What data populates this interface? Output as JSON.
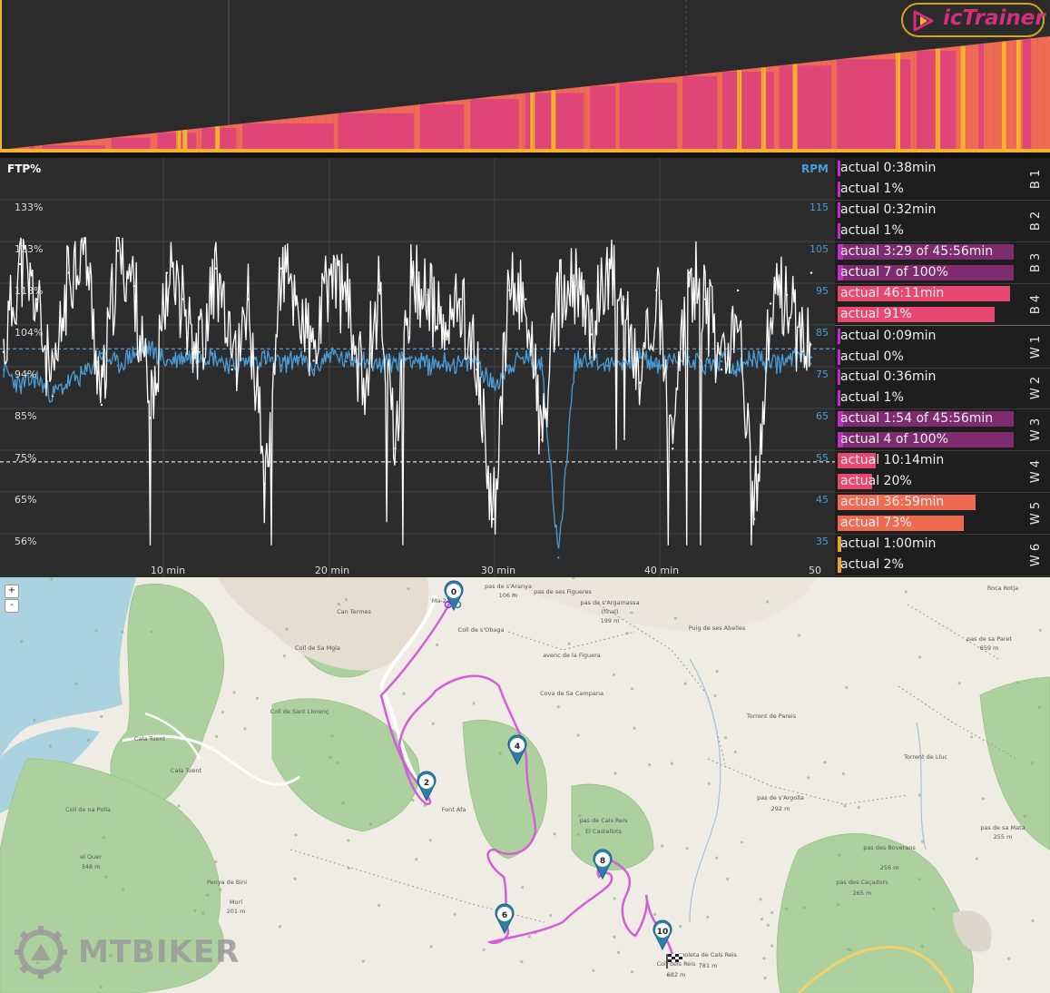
{
  "app": {
    "logo_text": "icTrainer"
  },
  "colors": {
    "accent": "#d1307a",
    "power_line": "#ffffff",
    "cadence_line": "#4a9bd6",
    "profile_base": "#ef6b55",
    "profile_pink": "#e0457a",
    "profile_yellow": "#f5b22a",
    "lap_purple": "#7e2b6f",
    "lap_pink": "#e8486f",
    "lap_orange": "#ee6b52",
    "lap_gold": "#f3a127"
  },
  "chart": {
    "ftp_label": "FTP%",
    "rpm_label": "RPM",
    "ftp_ticks": [
      "133%",
      "123%",
      "113%",
      "104%",
      "94%",
      "85%",
      "75%",
      "65%",
      "56%"
    ],
    "rpm_ticks": [
      "115",
      "105",
      "95",
      "85",
      "75",
      "65",
      "55",
      "45",
      "35"
    ],
    "time_ticks": [
      "10 min",
      "20 min",
      "30 min",
      "40 min",
      "50"
    ]
  },
  "chart_data": {
    "type": "line",
    "title": "",
    "xlabel": "",
    "ylabel": "FTP%",
    "y2label": "RPM",
    "xlim": [
      0,
      51
    ],
    "ylim": [
      53,
      141
    ],
    "y2lim": [
      31,
      121
    ],
    "ref_lines": {
      "ftp_dashed": 75,
      "rpm_dashed": 81
    },
    "series": [
      {
        "name": "",
        "axis": "ftp",
        "points": [
          [
            0,
            100
          ],
          [
            1,
            120
          ],
          [
            2,
            112
          ],
          [
            3,
            90
          ],
          [
            4,
            118
          ],
          [
            5,
            125
          ],
          [
            6,
            88
          ],
          [
            7,
            123
          ],
          [
            8,
            115
          ],
          [
            9,
            85
          ],
          [
            10,
            118
          ],
          [
            11,
            112
          ],
          [
            12,
            100
          ],
          [
            13,
            119
          ],
          [
            14,
            96
          ],
          [
            15,
            112
          ],
          [
            16,
            70
          ],
          [
            17,
            119
          ],
          [
            18,
            111
          ],
          [
            19,
            98
          ],
          [
            20,
            118
          ],
          [
            21,
            112
          ],
          [
            22,
            92
          ],
          [
            23,
            114
          ],
          [
            24,
            78
          ],
          [
            25,
            117
          ],
          [
            26,
            113
          ],
          [
            27,
            103
          ],
          [
            28,
            112
          ],
          [
            29,
            96
          ],
          [
            30,
            62
          ],
          [
            31,
            114
          ],
          [
            32,
            112
          ],
          [
            33,
            80
          ],
          [
            34,
            111
          ],
          [
            35,
            115
          ],
          [
            36,
            104
          ],
          [
            37,
            120
          ],
          [
            38,
            112
          ],
          [
            39,
            93
          ],
          [
            40,
            114
          ],
          [
            41,
            78
          ],
          [
            42,
            118
          ],
          [
            43,
            112
          ],
          [
            44,
            96
          ],
          [
            45,
            114
          ],
          [
            46,
            62
          ],
          [
            47,
            111
          ],
          [
            48,
            113
          ],
          [
            49,
            100
          ],
          [
            50,
            118
          ]
        ]
      },
      {
        "name": "",
        "axis": "rpm",
        "points": [
          [
            0,
            76
          ],
          [
            1,
            72
          ],
          [
            2,
            74
          ],
          [
            3,
            70
          ],
          [
            4,
            73
          ],
          [
            5,
            75
          ],
          [
            6,
            80
          ],
          [
            7,
            77
          ],
          [
            8,
            80
          ],
          [
            9,
            81
          ],
          [
            10,
            78
          ],
          [
            11,
            79
          ],
          [
            12,
            80
          ],
          [
            13,
            79
          ],
          [
            14,
            77
          ],
          [
            15,
            78
          ],
          [
            16,
            79
          ],
          [
            17,
            77
          ],
          [
            18,
            79
          ],
          [
            19,
            76
          ],
          [
            20,
            80
          ],
          [
            21,
            78
          ],
          [
            22,
            79
          ],
          [
            23,
            77
          ],
          [
            24,
            78
          ],
          [
            25,
            79
          ],
          [
            26,
            77
          ],
          [
            27,
            78
          ],
          [
            28,
            77
          ],
          [
            29,
            78
          ],
          [
            30,
            72
          ],
          [
            31,
            77
          ],
          [
            32,
            79
          ],
          [
            33,
            77
          ],
          [
            34,
            31
          ],
          [
            35,
            78
          ],
          [
            36,
            79
          ],
          [
            37,
            77
          ],
          [
            38,
            78
          ],
          [
            39,
            79
          ],
          [
            40,
            77
          ],
          [
            41,
            78
          ],
          [
            42,
            79
          ],
          [
            43,
            77
          ],
          [
            44,
            78
          ],
          [
            45,
            76
          ],
          [
            46,
            79
          ],
          [
            47,
            77
          ],
          [
            48,
            78
          ],
          [
            49,
            80
          ],
          [
            50,
            79
          ]
        ]
      }
    ]
  },
  "profile_data": {
    "type": "area",
    "ylim": [
      0,
      100
    ],
    "start": 0,
    "end": 100,
    "yellow_stripes": [
      16.8,
      17.4,
      20.5,
      50.5,
      52.5,
      70.2,
      72.5,
      75.5,
      85.3,
      89.1,
      91.5,
      95.4,
      96.8
    ],
    "pink_stripes": [
      2.8,
      3.3,
      4.0,
      10.0,
      10.6,
      14.3,
      15.0,
      18.7,
      19.2,
      22.5,
      23.1,
      31.8,
      32.2,
      39.4,
      40.0,
      44.2,
      44.8,
      49.4,
      50.0,
      55.6,
      56.2,
      58.6,
      59.0,
      64.5,
      65.0,
      68.3,
      68.8,
      73.7,
      74.2,
      79.2,
      79.7,
      86.7,
      87.3,
      91.0,
      93.2,
      93.7,
      97.4,
      98.2
    ]
  },
  "laps": [
    {
      "name": "B 1",
      "rows": [
        {
          "text": "actual 0:38min",
          "fill": 0.01,
          "color": "purple"
        },
        {
          "text": "actual 1%",
          "fill": 0.01,
          "color": "purple"
        }
      ]
    },
    {
      "name": "B 2",
      "rows": [
        {
          "text": "actual 0:32min",
          "fill": 0.01,
          "color": "purple"
        },
        {
          "text": "actual 1%",
          "fill": 0.01,
          "color": "purple"
        }
      ]
    },
    {
      "name": "B 3",
      "rows": [
        {
          "text": "actual 3:29 of 45:56min",
          "fill": 0.99,
          "color": "purple"
        },
        {
          "text": "actual 7 of 100%",
          "fill": 0.99,
          "color": "purple"
        }
      ]
    },
    {
      "name": "B 4",
      "rows": [
        {
          "text": "actual 46:11min",
          "fill": 1.0,
          "color": "pink"
        },
        {
          "text": "actual 91%",
          "fill": 0.91,
          "color": "pink"
        }
      ]
    },
    {
      "name": "W 1",
      "rows": [
        {
          "text": "actual 0:09min",
          "fill": 0.0,
          "color": "purple"
        },
        {
          "text": "actual 0%",
          "fill": 0.0,
          "color": "purple"
        }
      ]
    },
    {
      "name": "W 2",
      "rows": [
        {
          "text": "actual 0:36min",
          "fill": 0.01,
          "color": "purple"
        },
        {
          "text": "actual 1%",
          "fill": 0.01,
          "color": "purple"
        }
      ]
    },
    {
      "name": "W 3",
      "rows": [
        {
          "text": "actual 1:54 of 45:56min",
          "fill": 0.99,
          "color": "purple"
        },
        {
          "text": "actual 4 of 100%",
          "fill": 0.99,
          "color": "purple"
        }
      ]
    },
    {
      "name": "W 4",
      "rows": [
        {
          "text": "actual 10:14min",
          "fill": 0.22,
          "color": "pink"
        },
        {
          "text": "actual 20%",
          "fill": 0.2,
          "color": "pink"
        }
      ]
    },
    {
      "name": "W 5",
      "rows": [
        {
          "text": "actual 36:59min",
          "fill": 0.8,
          "color": "orange"
        },
        {
          "text": "actual 73%",
          "fill": 0.73,
          "color": "orange"
        }
      ]
    },
    {
      "name": "W 6",
      "rows": [
        {
          "text": "actual 1:00min",
          "fill": 0.02,
          "color": "gold"
        },
        {
          "text": "actual 2%",
          "fill": 0.02,
          "color": "gold"
        }
      ]
    }
  ],
  "map": {
    "zoom_in": "+",
    "zoom_out": "-",
    "markers": [
      {
        "label": "0"
      },
      {
        "label": "2"
      },
      {
        "label": "4"
      },
      {
        "label": "6"
      },
      {
        "label": "8"
      },
      {
        "label": "10"
      }
    ],
    "places": [
      {
        "text": "pas de s'Aranya"
      },
      {
        "text": "106 m"
      },
      {
        "text": "pas de ses Figueres"
      },
      {
        "text": "pas de s'Argamassa"
      },
      {
        "text": "(final)"
      },
      {
        "text": "199 m"
      },
      {
        "text": "Coll de s'Obaga"
      },
      {
        "text": "avenc de la Figuera"
      },
      {
        "text": "Cova de Sa Campana"
      },
      {
        "text": "Puig de ses Abelles"
      },
      {
        "text": "pas de sa Paret"
      },
      {
        "text": "659 m"
      },
      {
        "text": "Roca Rotja"
      },
      {
        "text": "Can Termes"
      },
      {
        "text": "Coll de Sa Mola"
      },
      {
        "text": "Coll de Sant Llorenç"
      },
      {
        "text": "Cala Tuent"
      },
      {
        "text": "Cala Tuent"
      },
      {
        "text": "Coll de na Polla"
      },
      {
        "text": "el Quer"
      },
      {
        "text": "348 m"
      },
      {
        "text": "Penya de Bini"
      },
      {
        "text": "Morí"
      },
      {
        "text": "201 m"
      },
      {
        "text": "pas de Cals Reis"
      },
      {
        "text": "El Castellots"
      },
      {
        "text": "pas de s'Argolla"
      },
      {
        "text": "292 m"
      },
      {
        "text": "pas de sa Mata"
      },
      {
        "text": "255 m"
      },
      {
        "text": "pas des Boverans"
      },
      {
        "text": "256 m"
      },
      {
        "text": "pas des Caçadors"
      },
      {
        "text": "265 m"
      },
      {
        "text": "moleta de Cals Reis"
      },
      {
        "text": "781 m"
      },
      {
        "text": "Coll dels Reis"
      },
      {
        "text": "682 m"
      },
      {
        "text": "Ma-2141"
      },
      {
        "text": "Font Afa"
      },
      {
        "text": "Torrent de Pareis"
      },
      {
        "text": "Torrent de Lluc"
      }
    ]
  },
  "watermark": {
    "text": "MTBIKER"
  }
}
